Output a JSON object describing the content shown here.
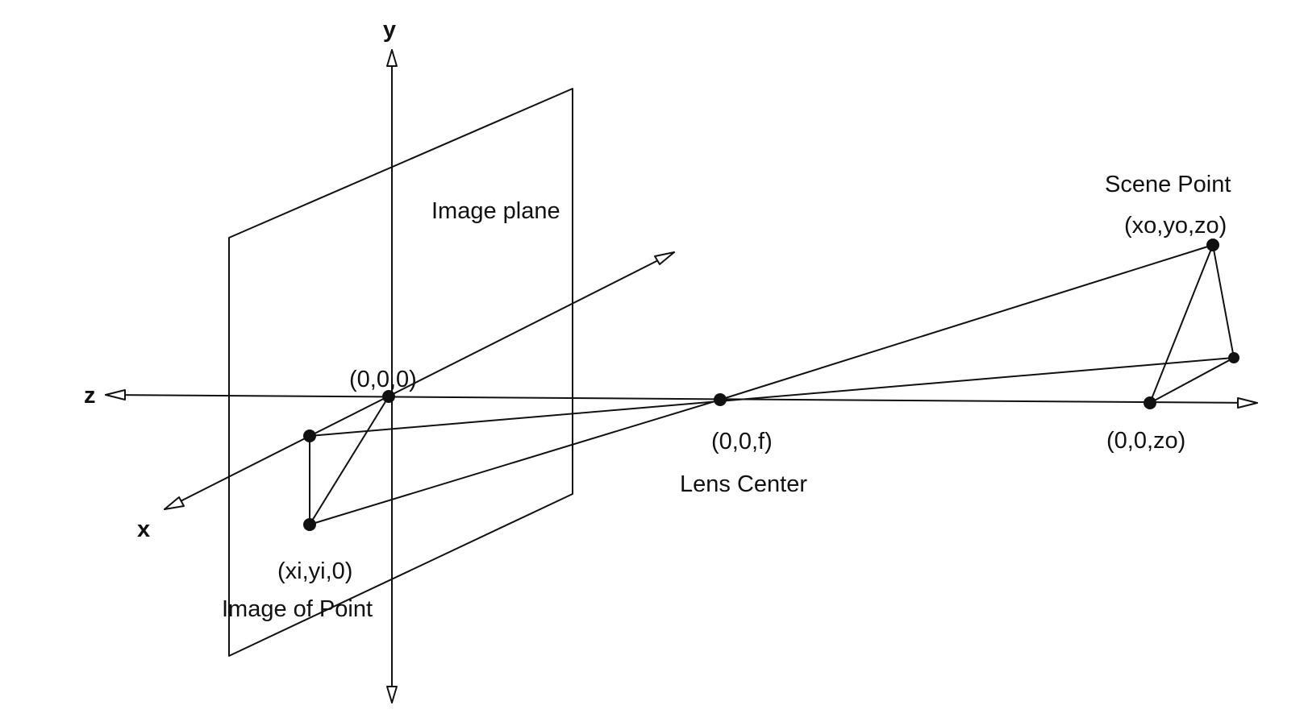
{
  "axes": {
    "y_label": "y",
    "z_label": "z",
    "x_label": "x"
  },
  "labels": {
    "image_plane": "Image plane",
    "origin": "(0,0,0)",
    "lens_coord": "(0,0,f)",
    "lens_name": "Lens Center",
    "image_point_coord": "(xi,yi,0)",
    "image_point_name": "Image of Point",
    "scene_point_name": "Scene Point",
    "scene_point_coord": "(xo,yo,zo)",
    "axis_point_coord": "(0,0,zo)"
  }
}
